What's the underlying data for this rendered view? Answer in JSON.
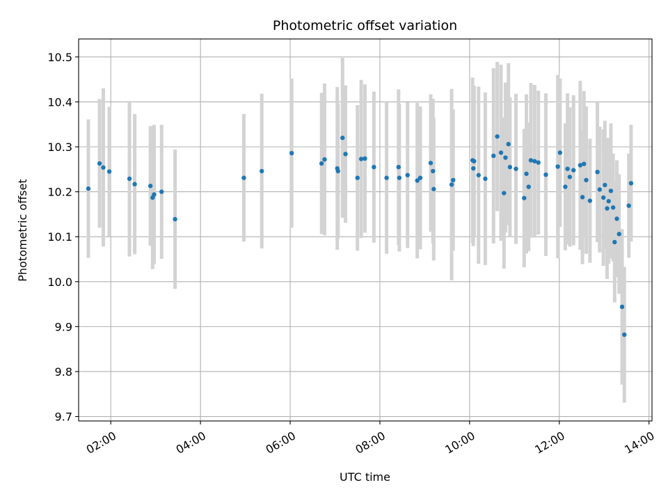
{
  "chart_data": {
    "type": "scatter",
    "title": "Photometric offset variation",
    "xlabel": "UTC time",
    "ylabel": "Photometric offset",
    "x_tick_labels": [
      "02:00",
      "04:00",
      "06:00",
      "08:00",
      "10:00",
      "12:00",
      "14:00"
    ],
    "y_tick_labels": [
      "9.7",
      "9.8",
      "9.9",
      "10.0",
      "10.1",
      "10.2",
      "10.3",
      "10.4",
      "10.5"
    ],
    "xlim": [
      "01:17",
      "14:04"
    ],
    "ylim": [
      9.69,
      10.54
    ],
    "grid": true,
    "errorbar_color": "#d3d3d3",
    "marker_color": "#1f77b4",
    "x": [
      "01:30",
      "01:45",
      "01:50",
      "01:58",
      "02:25",
      "02:32",
      "02:53",
      "02:56",
      "02:58",
      "03:08",
      "03:26",
      "04:58",
      "05:22",
      "06:02",
      "06:42",
      "06:46",
      "07:03",
      "07:04",
      "07:10",
      "07:14",
      "07:30",
      "07:35",
      "07:40",
      "07:52",
      "08:09",
      "08:25",
      "08:26",
      "08:37",
      "08:50",
      "08:54",
      "09:08",
      "09:11",
      "09:12",
      "09:36",
      "09:38",
      "10:04",
      "10:05",
      "10:06",
      "10:12",
      "10:21",
      "10:32",
      "10:37",
      "10:42",
      "10:46",
      "10:48",
      "10:52",
      "10:54",
      "11:02",
      "11:13",
      "11:16",
      "11:19",
      "11:22",
      "11:27",
      "11:32",
      "11:42",
      "11:58",
      "12:01",
      "12:08",
      "12:11",
      "12:14",
      "12:19",
      "12:28",
      "12:31",
      "12:33",
      "12:36",
      "12:41",
      "12:51",
      "12:54",
      "12:59",
      "13:01",
      "13:04",
      "13:06",
      "13:09",
      "13:12",
      "13:14",
      "13:17",
      "13:20",
      "13:24",
      "13:27",
      "13:33",
      "13:36"
    ],
    "values": [
      10.207,
      10.263,
      10.254,
      10.245,
      10.229,
      10.217,
      10.213,
      10.187,
      10.194,
      10.2,
      10.139,
      10.231,
      10.246,
      10.286,
      10.263,
      10.272,
      10.252,
      10.246,
      10.32,
      10.284,
      10.231,
      10.273,
      10.274,
      10.255,
      10.231,
      10.255,
      10.231,
      10.237,
      10.225,
      10.231,
      10.264,
      10.246,
      10.206,
      10.216,
      10.226,
      10.27,
      10.252,
      10.268,
      10.237,
      10.229,
      10.28,
      10.323,
      10.287,
      10.197,
      10.276,
      10.306,
      10.255,
      10.251,
      10.186,
      10.24,
      10.211,
      10.27,
      10.268,
      10.265,
      10.238,
      10.256,
      10.287,
      10.211,
      10.251,
      10.233,
      10.248,
      10.259,
      10.188,
      10.262,
      10.226,
      10.18,
      10.244,
      10.205,
      10.187,
      10.215,
      10.163,
      10.179,
      10.202,
      10.165,
      10.088,
      10.14,
      10.106,
      9.944,
      9.882,
      10.169,
      10.219
    ],
    "errors": [
      0.154,
      0.143,
      0.176,
      0.144,
      0.173,
      0.156,
      0.133,
      0.159,
      0.155,
      0.149,
      0.155,
      0.142,
      0.172,
      0.166,
      0.157,
      0.169,
      0.181,
      0.15,
      0.178,
      0.153,
      0.162,
      0.176,
      0.165,
      0.168,
      0.169,
      0.173,
      0.164,
      0.162,
      0.173,
      0.159,
      0.153,
      0.161,
      0.159,
      0.213,
      0.157,
      0.184,
      0.173,
      0.168,
      0.197,
      0.192,
      0.195,
      0.166,
      0.196,
      0.168,
      0.167,
      0.18,
      0.155,
      0.167,
      0.154,
      0.177,
      0.143,
      0.172,
      0.17,
      0.16,
      0.181,
      0.204,
      0.165,
      0.141,
      0.168,
      0.155,
      0.167,
      0.188,
      0.149,
      0.162,
      0.164,
      0.138,
      0.156,
      0.14,
      0.152,
      0.143,
      0.157,
      0.139,
      0.15,
      0.12,
      0.134,
      0.13,
      0.133,
      0.173,
      0.151,
      0.116,
      0.13
    ]
  }
}
